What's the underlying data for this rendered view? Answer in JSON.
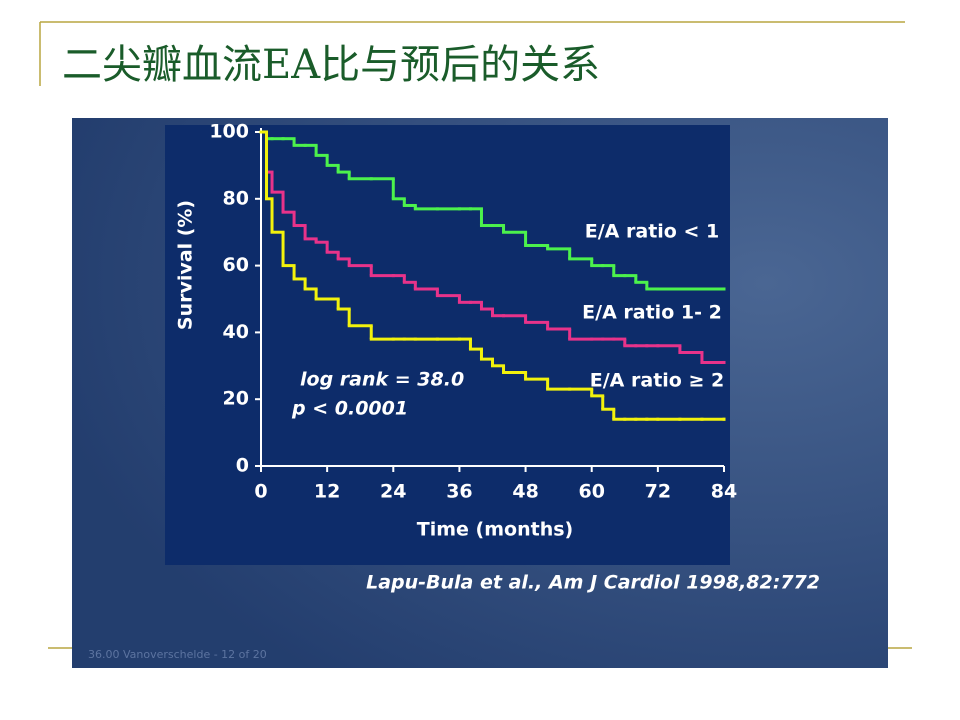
{
  "slide": {
    "title": "二尖瓣血流EA比与预后的关系",
    "footer": "36.00 Vanoverschelde - 12 of 20"
  },
  "chart_data": {
    "type": "line",
    "step": true,
    "x_label": "Time (months)",
    "y_label": "Survival (%)",
    "annotations": [
      "log rank = 38.0",
      "p < 0.0001"
    ],
    "source": "Lapu-Bula et al., Am J Cardiol 1998,82:772",
    "x": [
      0,
      1,
      2,
      4,
      6,
      8,
      10,
      12,
      14,
      16,
      20,
      24,
      26,
      28,
      32,
      36,
      38,
      40,
      42,
      44,
      48,
      52,
      56,
      60,
      62,
      64,
      66,
      68,
      70,
      72,
      76,
      80,
      84
    ],
    "series": [
      {
        "name": "E/A ratio < 1",
        "color": "#4cf24c",
        "values": [
          100,
          98,
          98,
          98,
          96,
          96,
          93,
          90,
          88,
          86,
          86,
          80,
          78,
          77,
          77,
          77,
          77,
          72,
          72,
          70,
          66,
          65,
          62,
          60,
          60,
          57,
          57,
          55,
          53,
          53,
          53,
          53,
          53
        ]
      },
      {
        "name": "E/A ratio 1- 2",
        "color": "#e8338a",
        "values": [
          100,
          88,
          82,
          76,
          72,
          68,
          67,
          64,
          62,
          60,
          57,
          57,
          55,
          53,
          51,
          49,
          49,
          47,
          45,
          45,
          43,
          41,
          38,
          38,
          38,
          38,
          36,
          36,
          36,
          36,
          34,
          31,
          31
        ]
      },
      {
        "name": "E/A ratio ≥ 2",
        "color": "#f2f20c",
        "values": [
          100,
          80,
          70,
          60,
          56,
          53,
          50,
          50,
          47,
          42,
          38,
          38,
          38,
          38,
          38,
          38,
          35,
          32,
          30,
          28,
          26,
          23,
          23,
          21,
          17,
          14,
          14,
          14,
          14,
          14,
          14,
          14,
          14
        ]
      }
    ],
    "xlim": [
      0,
      84
    ],
    "xticks": [
      0,
      12,
      24,
      36,
      48,
      60,
      72,
      84
    ],
    "ylim": [
      0,
      100
    ],
    "yticks": [
      0,
      20,
      40,
      60,
      80,
      100
    ]
  }
}
